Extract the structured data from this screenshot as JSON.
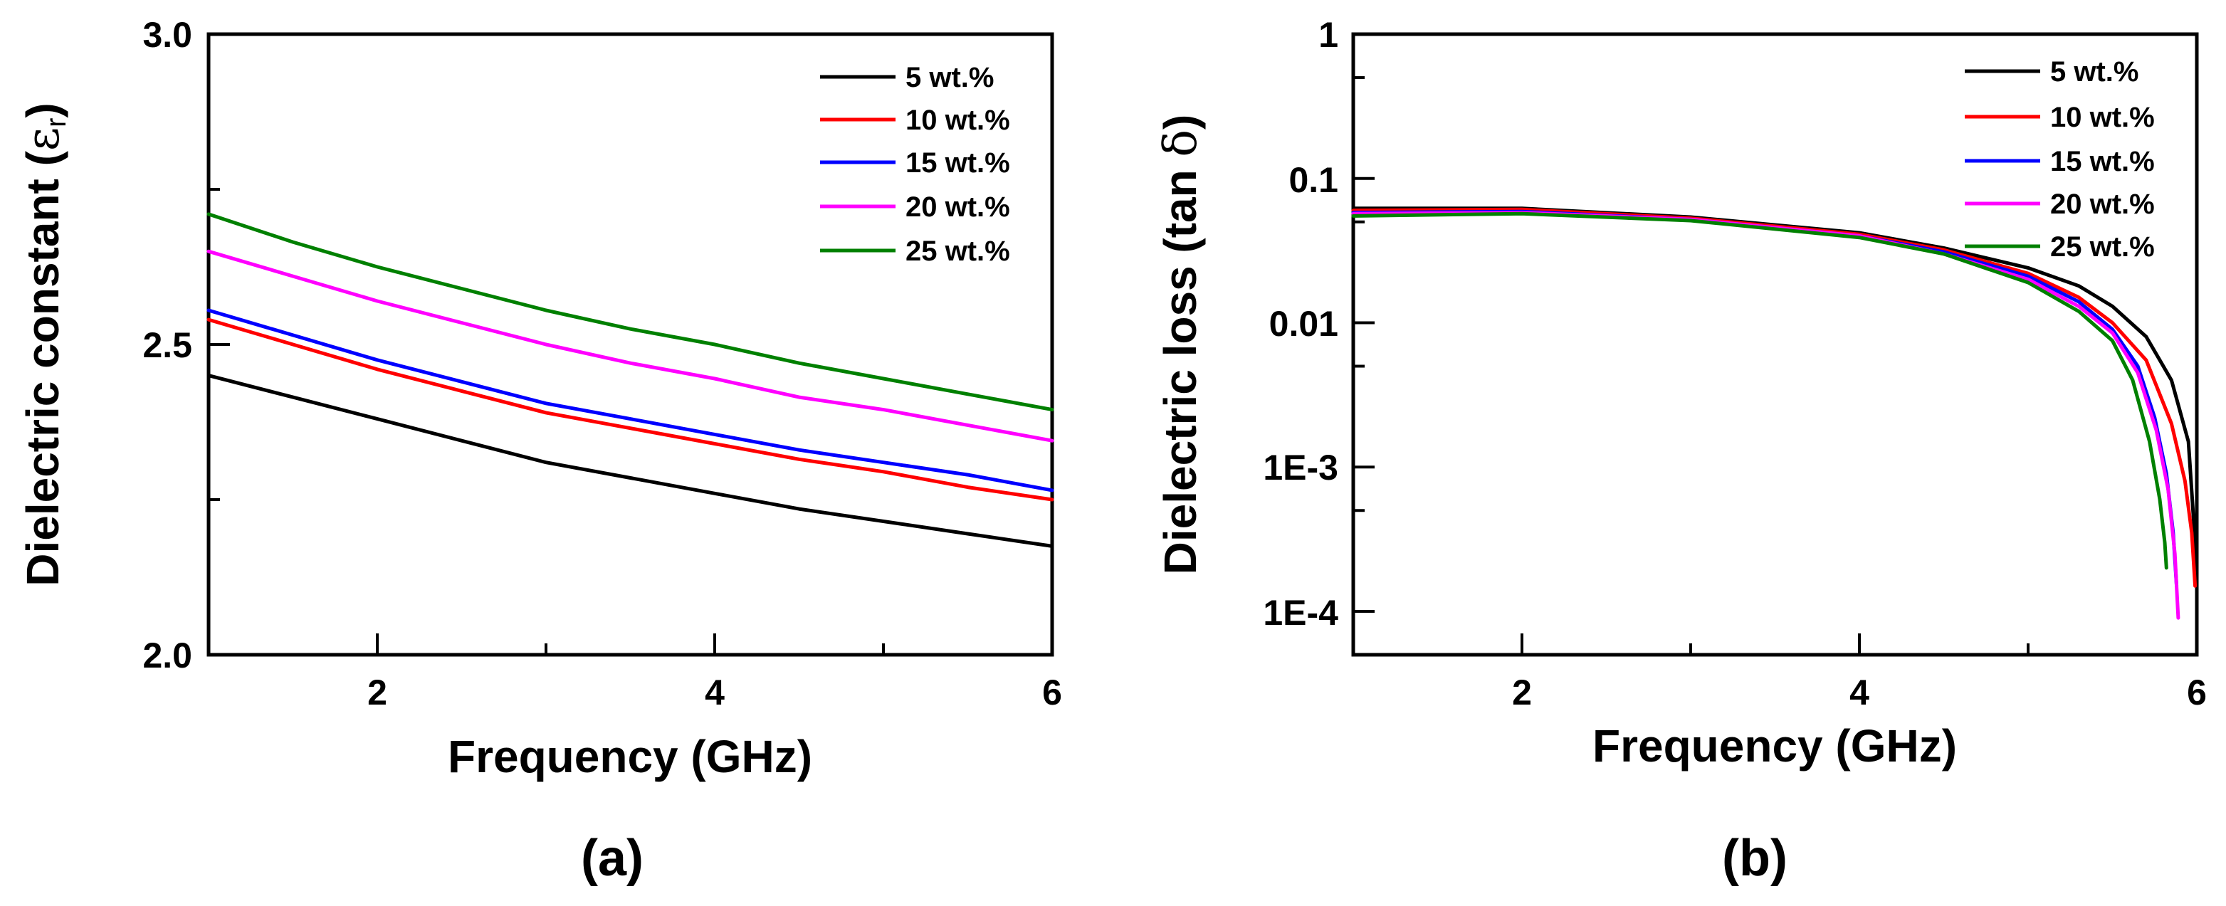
{
  "chart_data": [
    {
      "id": "a",
      "type": "line",
      "panel_label": "(a)",
      "title": "",
      "xlabel": "Frequency (GHz)",
      "ylabel": "Dielectric constant (εr)",
      "ylabel_main": "Dielectric constant (",
      "ylabel_symbol": "ε",
      "ylabel_sub": "r",
      "ylabel_close": ")",
      "xscale": "linear",
      "yscale": "linear",
      "xlim": [
        1,
        6
      ],
      "ylim": [
        2.0,
        3.0
      ],
      "xticks": [
        2,
        4,
        6
      ],
      "xtick_labels": [
        "2",
        "4",
        "6"
      ],
      "yticks": [
        2.0,
        2.5,
        3.0
      ],
      "ytick_labels": [
        "2.0",
        "2.5",
        "3.0"
      ],
      "grid": false,
      "legend_position": "top-right",
      "series": [
        {
          "name": "5 wt.%",
          "color": "#000000",
          "x": [
            1,
            1.5,
            2,
            2.5,
            3,
            3.5,
            4,
            4.5,
            5,
            5.5,
            6
          ],
          "y": [
            2.45,
            2.415,
            2.38,
            2.345,
            2.31,
            2.285,
            2.26,
            2.235,
            2.215,
            2.195,
            2.175
          ]
        },
        {
          "name": "10 wt.%",
          "color": "#ff0000",
          "x": [
            1,
            1.5,
            2,
            2.5,
            3,
            3.5,
            4,
            4.5,
            5,
            5.5,
            6
          ],
          "y": [
            2.54,
            2.5,
            2.46,
            2.425,
            2.39,
            2.365,
            2.34,
            2.315,
            2.295,
            2.27,
            2.25
          ]
        },
        {
          "name": "15 wt.%",
          "color": "#0000ff",
          "x": [
            1,
            1.5,
            2,
            2.5,
            3,
            3.5,
            4,
            4.5,
            5,
            5.5,
            6
          ],
          "y": [
            2.555,
            2.515,
            2.475,
            2.44,
            2.405,
            2.38,
            2.355,
            2.33,
            2.31,
            2.29,
            2.265
          ]
        },
        {
          "name": "20 wt.%",
          "color": "#ff00ff",
          "x": [
            1,
            1.5,
            2,
            2.5,
            3,
            3.5,
            4,
            4.5,
            5,
            5.5,
            6
          ],
          "y": [
            2.65,
            2.61,
            2.57,
            2.535,
            2.5,
            2.47,
            2.445,
            2.415,
            2.395,
            2.37,
            2.345
          ]
        },
        {
          "name": "25 wt.%",
          "color": "#008000",
          "x": [
            1,
            1.5,
            2,
            2.5,
            3,
            3.5,
            4,
            4.5,
            5,
            5.5,
            6
          ],
          "y": [
            2.71,
            2.665,
            2.625,
            2.59,
            2.555,
            2.525,
            2.5,
            2.47,
            2.445,
            2.42,
            2.395
          ]
        }
      ]
    },
    {
      "id": "b",
      "type": "line",
      "panel_label": "(b)",
      "title": "",
      "xlabel": "Frequency (GHz)",
      "ylabel": "Dielectric loss (tan δ)",
      "ylabel_main": "Dielectric loss (tan ",
      "ylabel_symbol": "δ",
      "ylabel_sub": "",
      "ylabel_close": ")",
      "xscale": "linear",
      "yscale": "log",
      "xlim": [
        1,
        6
      ],
      "ylim": [
        5e-05,
        1
      ],
      "xticks": [
        2,
        4,
        6
      ],
      "xtick_labels": [
        "2",
        "4",
        "6"
      ],
      "yticks": [
        0.0001,
        0.001,
        0.01,
        0.1,
        1
      ],
      "ytick_labels": [
        "1E-4",
        "1E-3",
        "0.01",
        "0.1",
        "1"
      ],
      "grid": false,
      "legend_position": "top-right",
      "series": [
        {
          "name": "5 wt.%",
          "color": "#000000",
          "x": [
            1,
            2,
            3,
            4,
            4.5,
            5,
            5.3,
            5.5,
            5.7,
            5.85,
            5.95,
            6
          ],
          "y": [
            0.062,
            0.062,
            0.054,
            0.042,
            0.033,
            0.024,
            0.018,
            0.013,
            0.008,
            0.004,
            0.0015,
            0.0002
          ]
        },
        {
          "name": "10 wt.%",
          "color": "#ff0000",
          "x": [
            1,
            2,
            3,
            4,
            4.5,
            5,
            5.3,
            5.5,
            5.7,
            5.85,
            5.93,
            5.97,
            5.99
          ],
          "y": [
            0.06,
            0.061,
            0.053,
            0.041,
            0.032,
            0.022,
            0.015,
            0.01,
            0.0055,
            0.002,
            0.0008,
            0.00035,
            0.00015
          ]
        },
        {
          "name": "15 wt.%",
          "color": "#0000ff",
          "x": [
            1,
            2,
            3,
            4,
            4.5,
            5,
            5.3,
            5.5,
            5.65,
            5.75,
            5.82,
            5.86,
            5.88
          ],
          "y": [
            0.058,
            0.059,
            0.052,
            0.04,
            0.031,
            0.021,
            0.014,
            0.009,
            0.005,
            0.0022,
            0.0009,
            0.00035,
            0.00015
          ]
        },
        {
          "name": "20 wt.%",
          "color": "#ff00ff",
          "x": [
            1,
            2,
            3,
            4,
            4.5,
            5,
            5.3,
            5.5,
            5.65,
            5.76,
            5.83,
            5.87,
            5.89
          ],
          "y": [
            0.057,
            0.058,
            0.052,
            0.04,
            0.03,
            0.02,
            0.013,
            0.0085,
            0.0045,
            0.0018,
            0.0007,
            0.00025,
            9e-05
          ]
        },
        {
          "name": "25 wt.%",
          "color": "#008000",
          "x": [
            1,
            2,
            3,
            4,
            4.5,
            5,
            5.3,
            5.5,
            5.62,
            5.72,
            5.78,
            5.81,
            5.82
          ],
          "y": [
            0.055,
            0.057,
            0.051,
            0.039,
            0.03,
            0.019,
            0.012,
            0.0075,
            0.004,
            0.0015,
            0.0006,
            0.0003,
            0.0002
          ]
        }
      ]
    }
  ]
}
